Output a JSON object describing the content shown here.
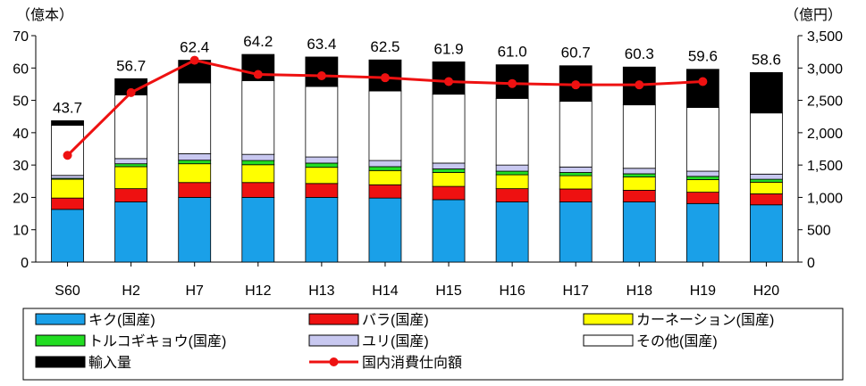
{
  "chart_data": {
    "type": "bar",
    "stacked": true,
    "categories": [
      "S60",
      "H2",
      "H7",
      "H12",
      "H13",
      "H14",
      "H15",
      "H16",
      "H17",
      "H18",
      "H19",
      "H20"
    ],
    "left_axis": {
      "unit": "（億本）",
      "ylim": [
        0,
        70
      ],
      "ticks": [
        0,
        10,
        20,
        30,
        40,
        50,
        60,
        70
      ]
    },
    "right_axis": {
      "unit": "（億円）",
      "ylim": [
        0,
        3500
      ],
      "ticks": [
        0,
        500,
        1000,
        1500,
        2000,
        2500,
        3000,
        3500
      ],
      "tick_labels": [
        "0",
        "500",
        "1,000",
        "1,500",
        "2,000",
        "2,500",
        "3,000",
        "3,500"
      ]
    },
    "totals": [
      43.7,
      56.7,
      62.4,
      64.2,
      63.4,
      62.5,
      61.9,
      61.0,
      60.7,
      60.3,
      59.6,
      58.6
    ],
    "total_labels": [
      "43.7",
      "56.7",
      "62.4",
      "64.2",
      "63.4",
      "62.5",
      "61.9",
      "61.0",
      "60.7",
      "60.3",
      "59.6",
      "58.6"
    ],
    "series": [
      {
        "name": "キク(国産)",
        "color": "#1aa0e8",
        "values": [
          16.3,
          18.6,
          20.0,
          20.0,
          20.0,
          19.8,
          19.3,
          18.6,
          18.6,
          18.6,
          18.1,
          17.7
        ]
      },
      {
        "name": "バラ(国産)",
        "color": "#ee1111",
        "values": [
          3.5,
          4.1,
          4.6,
          4.6,
          4.3,
          4.1,
          4.1,
          4.1,
          4.0,
          3.6,
          3.5,
          3.4
        ]
      },
      {
        "name": "カーネーション(国産)",
        "color": "#ffff00",
        "values": [
          5.8,
          6.8,
          5.8,
          5.5,
          5.0,
          4.4,
          4.3,
          4.3,
          4.1,
          4.1,
          3.9,
          3.6
        ]
      },
      {
        "name": "トルコギキョウ(国産)",
        "color": "#22dd22",
        "values": [
          0.3,
          0.9,
          1.1,
          1.3,
          1.3,
          1.2,
          1.1,
          1.1,
          1.0,
          1.0,
          1.0,
          0.9
        ]
      },
      {
        "name": "ユリ(国産)",
        "color": "#c8c8f0",
        "values": [
          0.9,
          1.6,
          2.0,
          1.9,
          1.9,
          1.9,
          1.8,
          1.9,
          1.7,
          1.7,
          1.6,
          1.6
        ]
      },
      {
        "name": "その他(国産)",
        "color": "#ffffff",
        "values": [
          15.5,
          19.7,
          21.9,
          22.8,
          21.8,
          21.5,
          21.3,
          20.6,
          20.3,
          19.6,
          19.7,
          18.9
        ]
      },
      {
        "name": "輸入量",
        "color": "#000000",
        "values": [
          1.4,
          5.0,
          7.0,
          8.1,
          9.1,
          9.6,
          10.0,
          10.4,
          11.0,
          11.7,
          11.8,
          12.5
        ]
      }
    ],
    "line_series": {
      "name": "国内消費仕向額",
      "color": "#ee1111",
      "axis": "right",
      "values": [
        1650,
        2620,
        3120,
        2900,
        2880,
        2850,
        2790,
        2760,
        2740,
        2740,
        2790,
        null
      ]
    },
    "legend_placement": "bottom",
    "grid": false
  }
}
